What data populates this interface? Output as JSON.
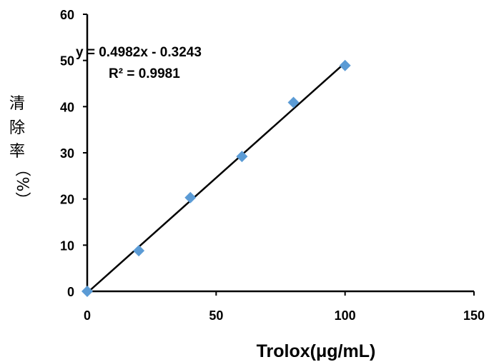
{
  "chart_data": {
    "type": "scatter",
    "xlabel": "Trolox(μg/mL)",
    "ylabel_chars": [
      "清",
      "除",
      "率",
      "（%）"
    ],
    "xlim": [
      0,
      150
    ],
    "ylim": [
      0,
      60
    ],
    "x_ticks": [
      0,
      50,
      100,
      150
    ],
    "y_ticks": [
      0,
      10,
      20,
      30,
      40,
      50,
      60
    ],
    "grid": false,
    "marker": "diamond",
    "marker_color": "#5b9bd5",
    "line_color": "#000000",
    "series": [
      {
        "x": [
          0,
          20,
          40,
          60,
          80,
          100
        ],
        "y": [
          0,
          8.8,
          20.3,
          29.2,
          40.9,
          48.9
        ]
      }
    ],
    "trendline": {
      "type": "linear",
      "slope": 0.4982,
      "intercept": -0.3243,
      "x_range": [
        0,
        100
      ],
      "equation": "y = 0.4982x - 0.3243",
      "r2_label": "R² = 0.9981"
    }
  }
}
